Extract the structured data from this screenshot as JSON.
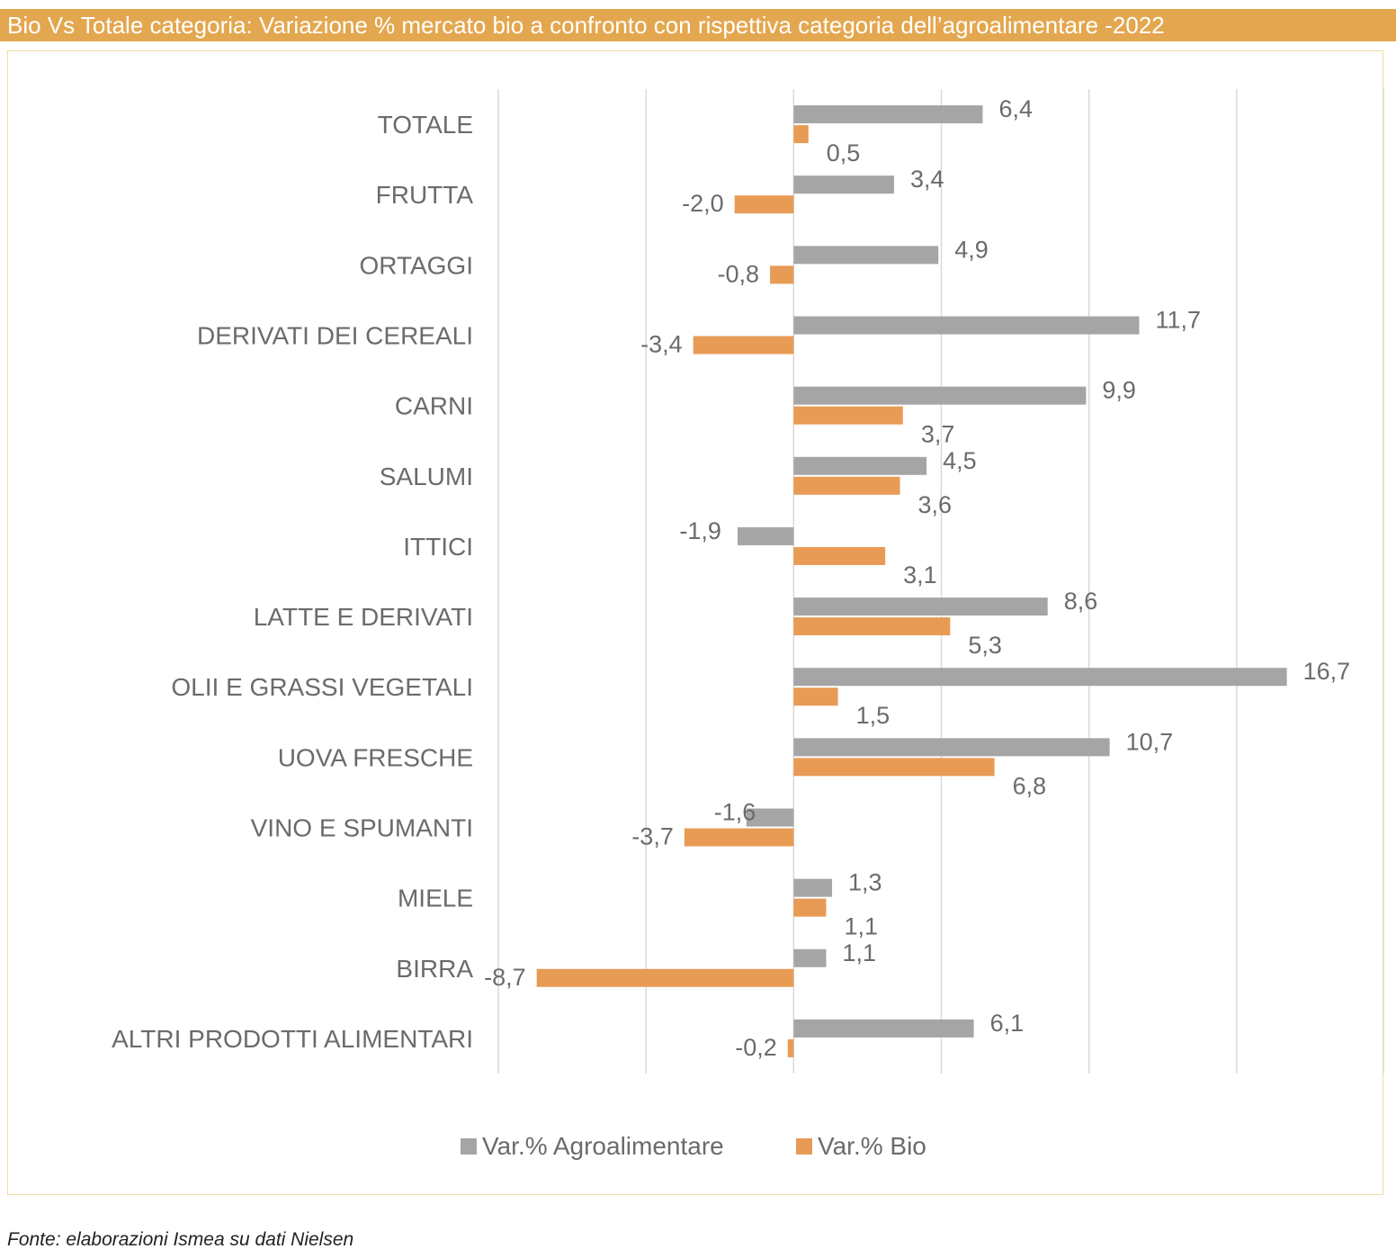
{
  "title": "Bio Vs Totale categoria: Variazione % mercato bio a confronto con rispettiva categoria dell’agroalimentare -2022",
  "source": "Fonte: elaborazioni Ismea su dati Nielsen",
  "colors": {
    "title_bg": "#E3A74F",
    "agro": "#A5A5A5",
    "bio": "#E89B55",
    "grid": "#D9D9D9",
    "frame": "#F0DC9C"
  },
  "chart_data": {
    "type": "bar",
    "orientation": "horizontal",
    "title": "Bio Vs Totale categoria: Variazione % mercato bio a confronto con rispettiva categoria dell’agroalimentare -2022",
    "categories": [
      "TOTALE",
      "FRUTTA",
      "ORTAGGI",
      "DERIVATI DEI CEREALI",
      "CARNI",
      "SALUMI",
      "ITTICI",
      "LATTE E DERIVATI",
      "OLII E GRASSI VEGETALI",
      "UOVA FRESCHE",
      "VINO E SPUMANTI",
      "MIELE",
      "BIRRA",
      "ALTRI PRODOTTI ALIMENTARI"
    ],
    "series": [
      {
        "name": "Var.% Agroalimentare",
        "values": [
          6.4,
          3.4,
          4.9,
          11.7,
          9.9,
          4.5,
          -1.9,
          8.6,
          16.7,
          10.7,
          -1.6,
          1.3,
          1.1,
          6.1
        ],
        "labels": [
          "6,4",
          "3,4",
          "4,9",
          "11,7",
          "9,9",
          "4,5",
          "-1,9",
          "8,6",
          "16,7",
          "10,7",
          "-1,6",
          "1,3",
          "1,1",
          "6,1"
        ]
      },
      {
        "name": "Var.% Bio",
        "values": [
          0.5,
          -2.0,
          -0.8,
          -3.4,
          3.7,
          3.6,
          3.1,
          5.3,
          1.5,
          6.8,
          -3.7,
          1.1,
          -8.7,
          -0.2
        ],
        "labels": [
          "0,5",
          "-2,0",
          "-0,8",
          "-3,4",
          "3,7",
          "3,6",
          "3,1",
          "5,3",
          "1,5",
          "6,8",
          "-3,7",
          "1,1",
          "-8,7",
          "-0,2"
        ]
      }
    ],
    "xlim": [
      -10,
      20
    ],
    "grid": true,
    "tick_labels_shown": false,
    "legend_position": "bottom"
  }
}
